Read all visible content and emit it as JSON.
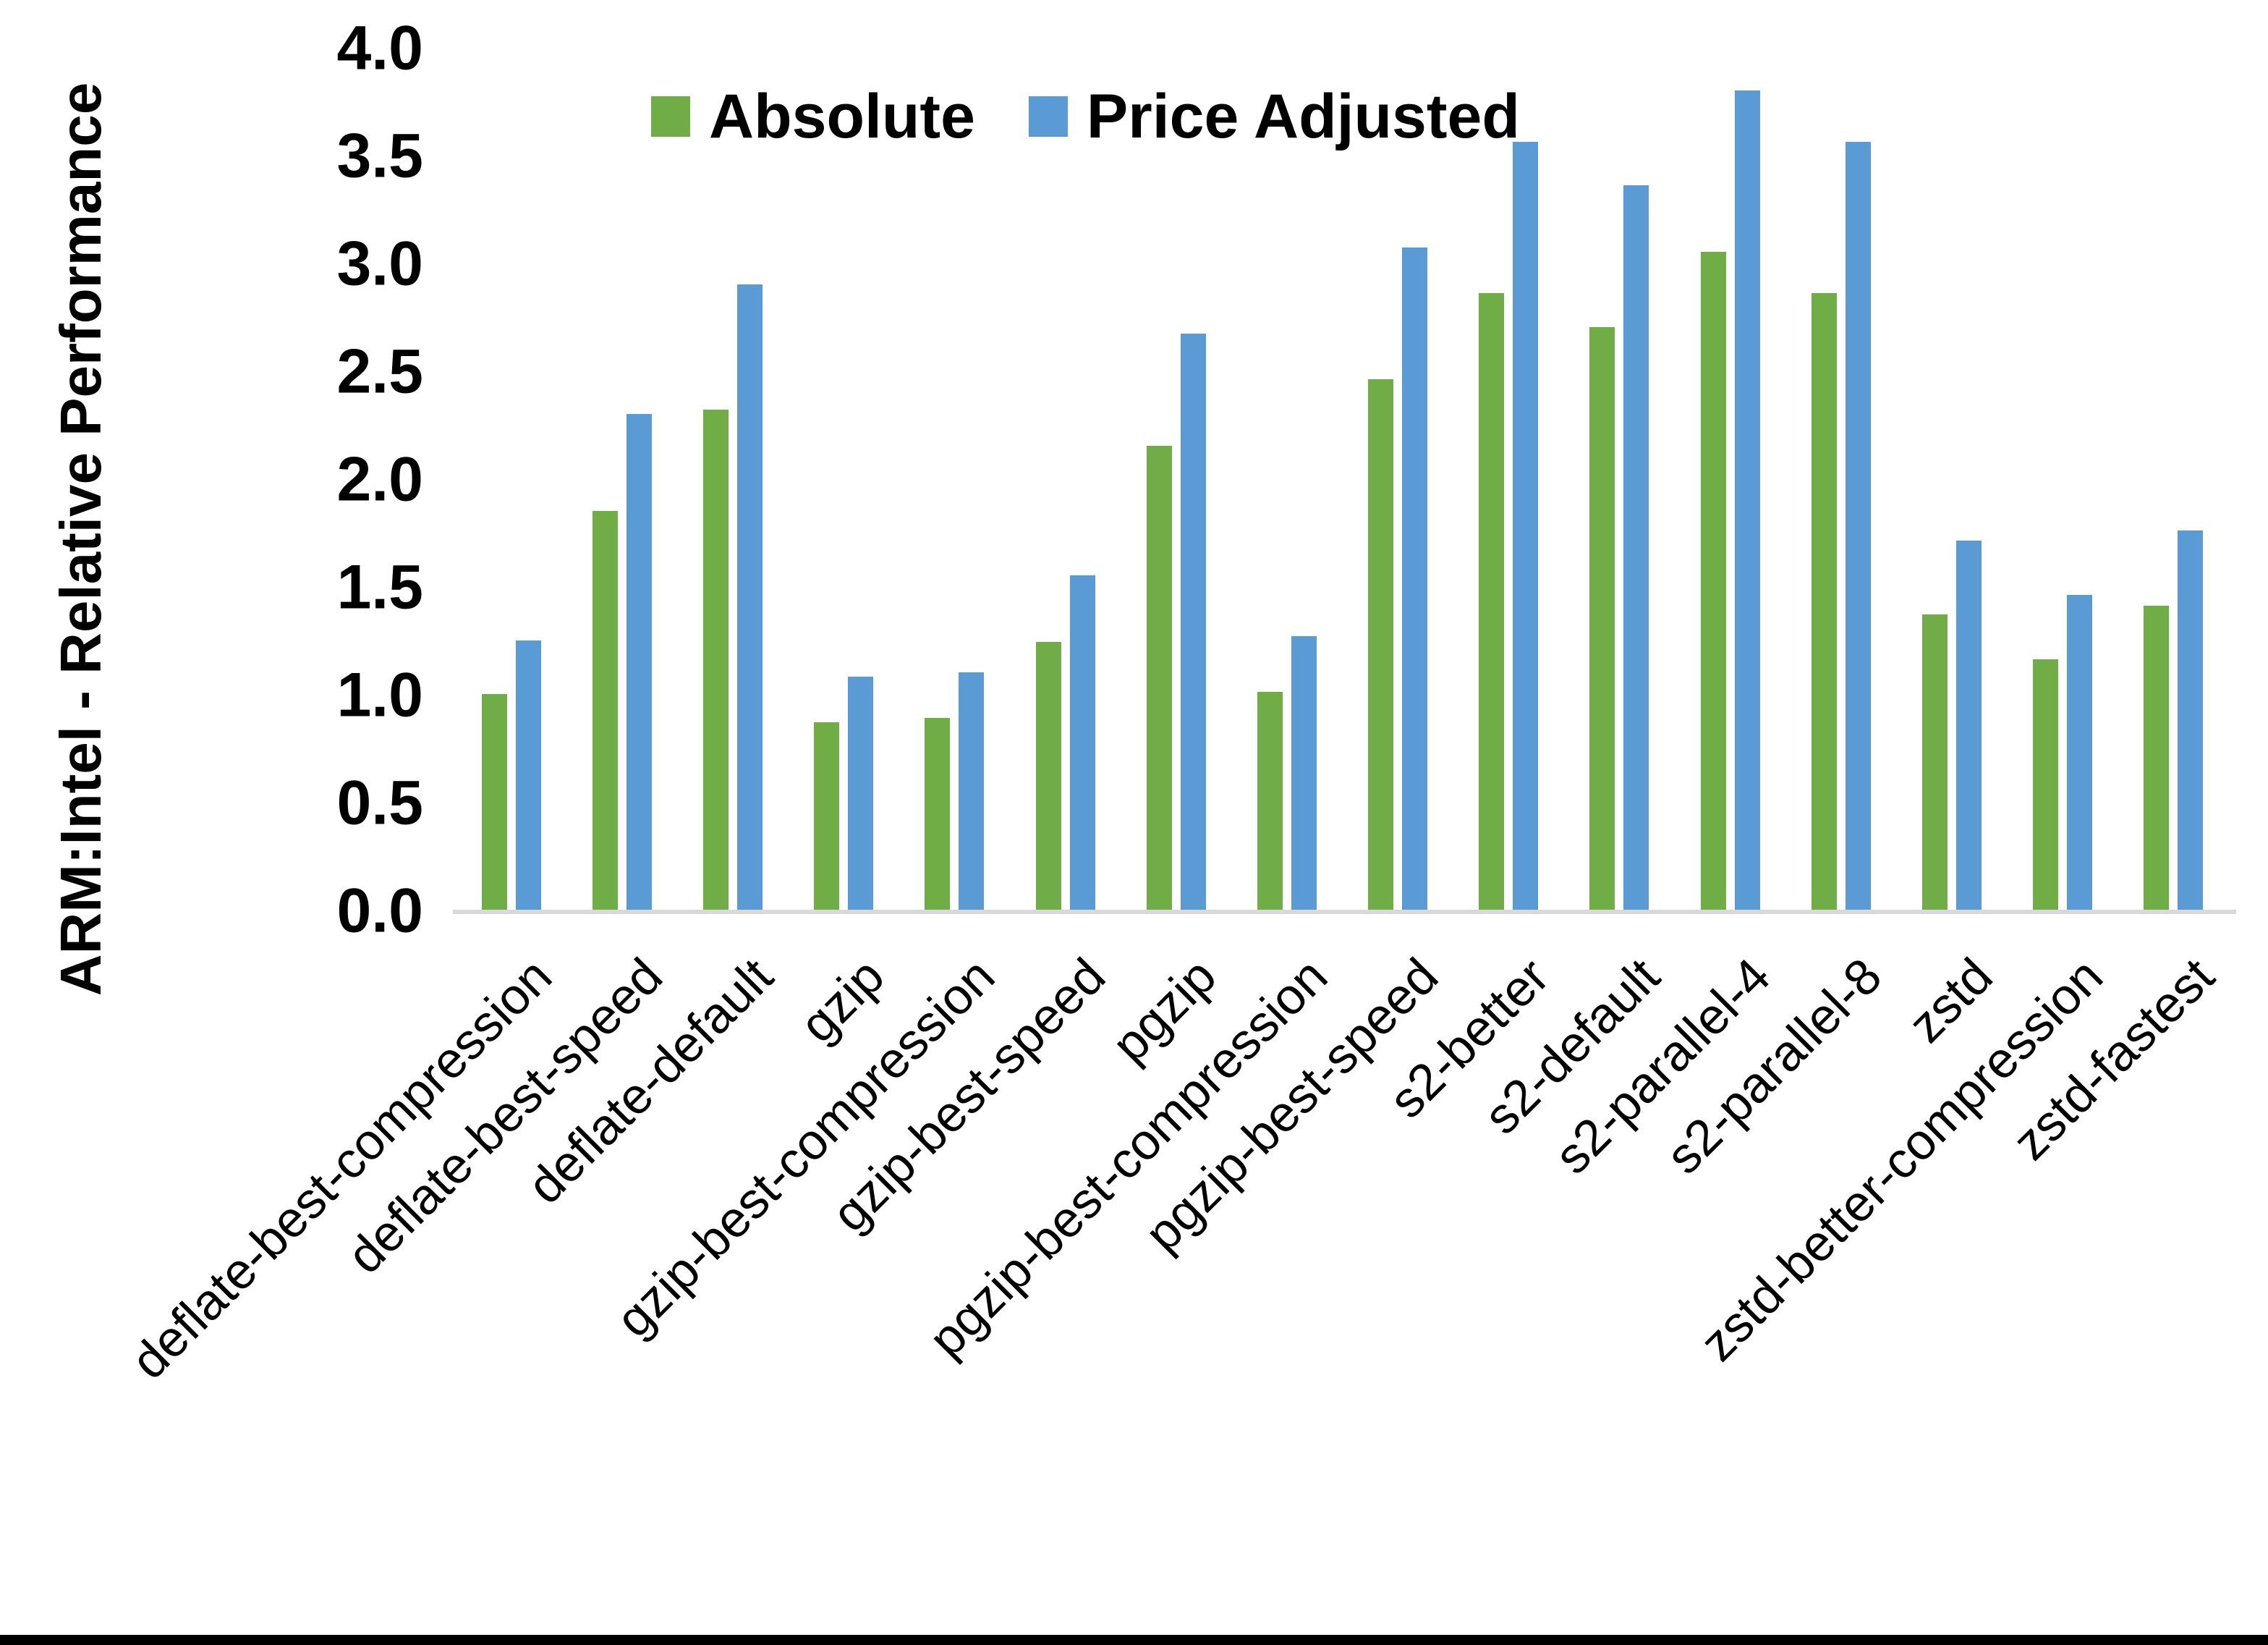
{
  "page": {
    "background": "#FFFFFF",
    "bottom_bar_color": "#000000"
  },
  "chart_data": {
    "type": "bar",
    "title": "",
    "xlabel": "",
    "ylabel": "ARM:Intel - Relative Performance",
    "ylim": [
      0.0,
      4.0
    ],
    "ytick_step": 0.5,
    "yticks": [
      "4.0",
      "3.5",
      "3.0",
      "2.5",
      "2.0",
      "1.5",
      "1.0",
      "0.5",
      "0.0"
    ],
    "ytick_values": [
      4.0,
      3.5,
      3.0,
      2.5,
      2.0,
      1.5,
      1.0,
      0.5,
      0.0
    ],
    "grid": false,
    "legend_position": "top",
    "axis_line_color": "#D9D9D9",
    "text_color": "#000000",
    "categories": [
      "deflate-best-compression",
      "deflate-best-speed",
      "deflate-default",
      "gzip",
      "gzip-best-compression",
      "gzip-best-speed",
      "pgzip",
      "pgzip-best-compression",
      "pgzip-best-speed",
      "s2-better",
      "s2-default",
      "s2-parallel-4",
      "s2-parallel-8",
      "zstd",
      "zstd-better-compression",
      "zstd-fastest"
    ],
    "series": [
      {
        "name": "Absolute",
        "color": "#70AD47",
        "values": [
          1.0,
          1.85,
          2.32,
          0.87,
          0.89,
          1.24,
          2.15,
          1.01,
          2.46,
          2.86,
          2.7,
          3.05,
          2.86,
          1.37,
          1.16,
          1.41
        ]
      },
      {
        "name": "Price Adjusted",
        "color": "#5B9BD5",
        "values": [
          1.25,
          2.3,
          2.9,
          1.08,
          1.1,
          1.55,
          2.67,
          1.27,
          3.07,
          3.56,
          3.36,
          3.8,
          3.56,
          1.71,
          1.46,
          1.76
        ]
      }
    ]
  }
}
